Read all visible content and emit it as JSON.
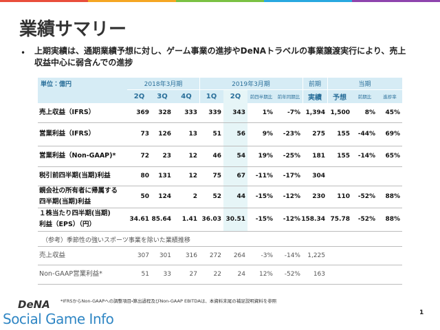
{
  "title": "業績サマリー",
  "bullet": "上期実績は、通期業績予想に対し、ゲーム事業の進捗やDeNAトラベルの事業譲渡実行により、売上収益中心に弱含んでの進捗",
  "table": {
    "unit": "単位：億円",
    "groups": [
      "2018年3月期",
      "2019年3月期",
      "前期",
      "当期"
    ],
    "columns": [
      "2Q",
      "3Q",
      "4Q",
      "1Q",
      "2Q",
      "前四半期比",
      "前年同期比",
      "実績",
      "予想",
      "前期比",
      "進捗率"
    ],
    "rows": [
      {
        "label": [
          "売上収益（IFRS）"
        ],
        "cells": [
          "369",
          "328",
          "333",
          "339",
          "343",
          "1%",
          "-7%",
          "1,394",
          "1,500",
          "8%",
          "45%"
        ]
      },
      {
        "label": [
          "営業利益（IFRS）"
        ],
        "cells": [
          "73",
          "126",
          "13",
          "51",
          "56",
          "9%",
          "-23%",
          "275",
          "155",
          "-44%",
          "69%"
        ]
      },
      {
        "label": [
          "営業利益（Non-GAAP)*"
        ],
        "cells": [
          "72",
          "23",
          "12",
          "46",
          "54",
          "19%",
          "-25%",
          "181",
          "155",
          "-14%",
          "65%"
        ]
      },
      {
        "label": [
          "税引前四半期(当期)利益"
        ],
        "cells": [
          "80",
          "131",
          "12",
          "75",
          "67",
          "-11%",
          "-17%",
          "304"
        ]
      },
      {
        "label": [
          "親会社の所有者に帰属する",
          "四半期(当期)利益"
        ],
        "cells": [
          "50",
          "124",
          "2",
          "52",
          "44",
          "-15%",
          "-12%",
          "230",
          "110",
          "-52%",
          "88%"
        ]
      },
      {
        "label": [
          "１株当たり四半期(当期)",
          "利益（EPS）（円）"
        ],
        "cells": [
          "34.61",
          "85.64",
          "1.41",
          "36.03",
          "30.51",
          "-15%",
          "-12%",
          "158.34",
          "75.78",
          "-52%",
          "88%"
        ]
      }
    ]
  },
  "reference": {
    "title": "（参考）季節性の強いスポーツ事業を除いた業績推移",
    "rows": [
      {
        "label": [
          "売上収益"
        ],
        "cells": [
          "307",
          "301",
          "316",
          "272",
          "264",
          "-3%",
          "-14%",
          "1,225"
        ]
      },
      {
        "label": [
          "Non-GAAP営業利益*"
        ],
        "cells": [
          "51",
          "33",
          "27",
          "22",
          "24",
          "12%",
          "-52%",
          "163"
        ]
      }
    ]
  },
  "footnote": "*IFRSからNon-GAAPへの調整項目・算出過程及びNon-GAAP EBITDAは、本資料末尾の補足説明資料を参照",
  "logo": {
    "brand": "DeNA",
    "site": "Social Game Info"
  },
  "page_number": "1"
}
